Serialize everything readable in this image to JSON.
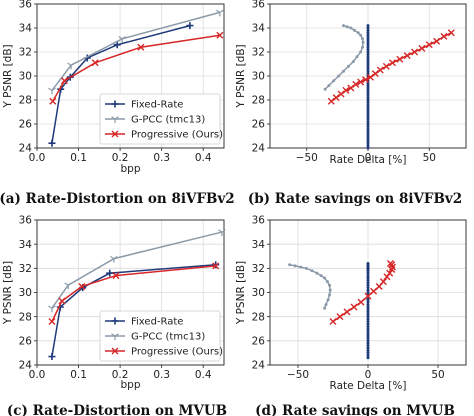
{
  "colors": {
    "fixed_rate": "#1f3a7a",
    "gpcc": "#8c9aa8",
    "progressive": "#d62728",
    "zero_line": "#1f3a7a",
    "grid": "#dcdcdc"
  },
  "chart_data": [
    {
      "type": "line",
      "caption": "(a) Rate-Distortion on 8iVFBv2",
      "xlabel": "bpp",
      "ylabel": "Y PSNR [dB]",
      "xlim": [
        0.0,
        0.45
      ],
      "ylim": [
        24,
        36
      ],
      "xticks": [
        "0.0",
        "0.1",
        "0.2",
        "0.3",
        "0.4"
      ],
      "yticks": [
        "24",
        "26",
        "28",
        "30",
        "32",
        "34",
        "36"
      ],
      "grid": true,
      "legend": "lower-right",
      "series": [
        {
          "name": "Fixed-Rate",
          "marker": "plus",
          "color_key": "fixed_rate",
          "x": [
            0.036,
            0.057,
            0.08,
            0.121,
            0.193,
            0.368
          ],
          "y": [
            24.4,
            28.9,
            29.9,
            31.5,
            32.6,
            34.2
          ]
        },
        {
          "name": "G-PCC (tmc13)",
          "marker": "tri",
          "color_key": "gpcc",
          "x": [
            0.036,
            0.082,
            0.205,
            0.44
          ],
          "y": [
            28.8,
            30.9,
            33.1,
            35.3
          ]
        },
        {
          "name": "Progressive (Ours)",
          "marker": "x",
          "color_key": "progressive",
          "x": [
            0.038,
            0.066,
            0.14,
            0.25,
            0.44
          ],
          "y": [
            27.9,
            29.6,
            31.1,
            32.4,
            33.4
          ]
        }
      ]
    },
    {
      "type": "line",
      "caption": "(b) Rate savings on 8iVFBv2",
      "xlabel": "Rate Delta [%]",
      "ylabel": "Y PSNR [dB]",
      "xlim": [
        -80,
        80
      ],
      "ylim": [
        24,
        36
      ],
      "xticks": [
        "−50",
        "0",
        "50"
      ],
      "xtick_values": [
        -50,
        0,
        50
      ],
      "yticks": [
        "24",
        "26",
        "28",
        "30",
        "32",
        "34",
        "36"
      ],
      "grid": true,
      "series": [
        {
          "color_key": "zero_line",
          "marker": "dot",
          "x": [
            0,
            0,
            0,
            0,
            0,
            0,
            0,
            0,
            0,
            0,
            0,
            0,
            0,
            0,
            0,
            0,
            0,
            0,
            0,
            0,
            0,
            0,
            0,
            0,
            0,
            0,
            0,
            0,
            0,
            0,
            0,
            0,
            0,
            0,
            0,
            0,
            0,
            0,
            0,
            0,
            0,
            0,
            0,
            0,
            0,
            0,
            0,
            0,
            0,
            0,
            0,
            0
          ],
          "y": [
            24.0,
            24.2,
            24.4,
            24.6,
            24.8,
            25.0,
            25.2,
            25.4,
            25.6,
            25.8,
            26.0,
            26.2,
            26.4,
            26.6,
            26.8,
            27.0,
            27.2,
            27.4,
            27.6,
            27.8,
            28.0,
            28.2,
            28.4,
            28.6,
            28.8,
            29.0,
            29.2,
            29.4,
            29.6,
            29.8,
            30.0,
            30.2,
            30.4,
            30.6,
            30.8,
            31.0,
            31.2,
            31.4,
            31.6,
            31.8,
            32.0,
            32.2,
            32.4,
            32.6,
            32.8,
            33.0,
            33.2,
            33.4,
            33.6,
            33.8,
            34.0,
            34.2
          ]
        },
        {
          "color_key": "gpcc",
          "marker": "dot",
          "x": [
            -35,
            -32,
            -28,
            -24,
            -20,
            -16,
            -12,
            -9,
            -6,
            -4.5,
            -4,
            -4.5,
            -6,
            -8,
            -11,
            -14,
            -17,
            -20
          ],
          "y": [
            28.9,
            29.2,
            29.6,
            30.0,
            30.4,
            30.8,
            31.2,
            31.6,
            32.0,
            32.4,
            32.8,
            33.1,
            33.4,
            33.6,
            33.8,
            34.0,
            34.1,
            34.2
          ]
        },
        {
          "color_key": "progressive",
          "marker": "x",
          "x": [
            -30,
            -26,
            -22,
            -18,
            -14,
            -10,
            -6,
            -2,
            2,
            6,
            10,
            15,
            20,
            26,
            32,
            38,
            44,
            50,
            56,
            62,
            68
          ],
          "y": [
            27.9,
            28.2,
            28.5,
            28.8,
            29.0,
            29.3,
            29.5,
            29.7,
            29.9,
            30.2,
            30.5,
            30.8,
            31.1,
            31.4,
            31.7,
            32.0,
            32.3,
            32.6,
            32.9,
            33.3,
            33.6
          ]
        }
      ]
    },
    {
      "type": "line",
      "caption": "(c) Rate-Distortion on MVUB",
      "xlabel": "bpp",
      "ylabel": "Y PSNR [dB]",
      "xlim": [
        0.0,
        0.45
      ],
      "ylim": [
        24,
        36
      ],
      "xticks": [
        "0.0",
        "0.1",
        "0.2",
        "0.3",
        "0.4"
      ],
      "yticks": [
        "24",
        "26",
        "28",
        "30",
        "32",
        "34",
        "36"
      ],
      "grid": true,
      "legend": "lower-right",
      "series": [
        {
          "name": "Fixed-Rate",
          "marker": "plus",
          "color_key": "fixed_rate",
          "x": [
            0.036,
            0.056,
            0.11,
            0.175,
            0.43
          ],
          "y": [
            24.7,
            28.8,
            30.4,
            31.6,
            32.3
          ]
        },
        {
          "name": "G-PCC (tmc13)",
          "marker": "tri",
          "color_key": "gpcc",
          "x": [
            0.036,
            0.075,
            0.185,
            0.445
          ],
          "y": [
            28.7,
            30.6,
            32.8,
            35.0
          ]
        },
        {
          "name": "Progressive (Ours)",
          "marker": "x",
          "color_key": "progressive",
          "x": [
            0.036,
            0.06,
            0.108,
            0.19,
            0.43
          ],
          "y": [
            27.6,
            29.3,
            30.5,
            31.4,
            32.2
          ]
        }
      ]
    },
    {
      "type": "line",
      "caption": "(d) Rate savings on MVUB",
      "xlabel": "Rate Delta [%]",
      "ylabel": "Y PSNR [dB]",
      "xlim": [
        -70,
        70
      ],
      "ylim": [
        24,
        36
      ],
      "xticks": [
        "−50",
        "0",
        "50"
      ],
      "xtick_values": [
        -50,
        0,
        50
      ],
      "yticks": [
        "24",
        "26",
        "28",
        "30",
        "32",
        "34",
        "36"
      ],
      "grid": true,
      "series": [
        {
          "color_key": "zero_line",
          "marker": "dot",
          "x": [
            0,
            0,
            0,
            0,
            0,
            0,
            0,
            0,
            0,
            0,
            0,
            0,
            0,
            0,
            0,
            0,
            0,
            0,
            0,
            0,
            0,
            0,
            0,
            0,
            0,
            0,
            0,
            0,
            0,
            0,
            0,
            0,
            0,
            0,
            0,
            0,
            0,
            0,
            0,
            0,
            0,
            0,
            0
          ],
          "y": [
            24.6,
            24.8,
            25.0,
            25.2,
            25.4,
            25.6,
            25.8,
            26.0,
            26.2,
            26.4,
            26.6,
            26.8,
            27.0,
            27.2,
            27.4,
            27.6,
            27.8,
            28.0,
            28.2,
            28.4,
            28.6,
            28.8,
            29.0,
            29.2,
            29.4,
            29.6,
            29.8,
            30.0,
            30.2,
            30.4,
            30.6,
            30.8,
            31.0,
            31.2,
            31.4,
            31.6,
            31.8,
            32.0,
            32.2,
            32.4,
            32.3,
            32.1,
            31.9
          ]
        },
        {
          "color_key": "gpcc",
          "marker": "dot",
          "x": [
            -31,
            -30,
            -28.5,
            -27.5,
            -27,
            -27.5,
            -29,
            -31,
            -33.5,
            -36.5,
            -40,
            -44,
            -48,
            -52,
            -56
          ],
          "y": [
            28.7,
            29.0,
            29.4,
            29.8,
            30.2,
            30.6,
            30.9,
            31.2,
            31.4,
            31.6,
            31.8,
            32.0,
            32.1,
            32.2,
            32.3
          ]
        },
        {
          "color_key": "progressive",
          "marker": "x",
          "x": [
            -25,
            -20,
            -15,
            -10,
            -5,
            0,
            4,
            8,
            11,
            13.5,
            15.5,
            17,
            17.5,
            17,
            16
          ],
          "y": [
            27.6,
            28.0,
            28.4,
            28.8,
            29.2,
            29.7,
            30.1,
            30.5,
            30.9,
            31.3,
            31.6,
            31.9,
            32.1,
            32.3,
            32.4
          ]
        }
      ]
    }
  ]
}
